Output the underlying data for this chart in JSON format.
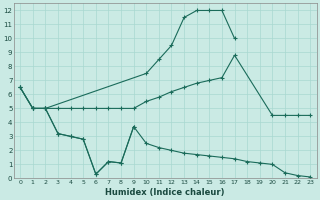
{
  "xlabel": "Humidex (Indice chaleur)",
  "background_color": "#caeae4",
  "grid_color": "#a8d8d0",
  "line_color": "#1a6b5a",
  "x_ticks": [
    0,
    1,
    2,
    3,
    4,
    5,
    6,
    7,
    8,
    9,
    10,
    11,
    12,
    13,
    14,
    15,
    16,
    17,
    18,
    19,
    20,
    21,
    22,
    23
  ],
  "y_ticks": [
    0,
    1,
    2,
    3,
    4,
    5,
    6,
    7,
    8,
    9,
    10,
    11,
    12
  ],
  "xlim": [
    -0.5,
    23.5
  ],
  "ylim": [
    0,
    12.5
  ],
  "lines": [
    {
      "x": [
        0,
        1,
        2,
        10,
        11,
        12,
        13,
        14,
        15,
        16,
        17
      ],
      "y": [
        6.5,
        5.0,
        5.0,
        7.5,
        8.5,
        9.5,
        11.5,
        12.0,
        12.0,
        12.0,
        10.0
      ]
    },
    {
      "x": [
        0,
        1,
        2,
        3,
        4,
        5,
        6,
        7,
        8,
        9,
        10,
        11,
        12,
        13,
        14,
        15,
        16,
        17,
        20,
        21,
        22,
        23
      ],
      "y": [
        6.5,
        5.0,
        5.0,
        5.0,
        5.0,
        5.0,
        5.0,
        5.0,
        5.0,
        5.0,
        5.5,
        5.8,
        6.2,
        6.5,
        6.8,
        7.0,
        7.2,
        8.8,
        4.5,
        4.5,
        4.5,
        4.5
      ]
    },
    {
      "x": [
        1,
        2,
        3,
        4,
        5,
        6,
        7,
        8,
        9
      ],
      "y": [
        5.0,
        5.0,
        3.2,
        3.0,
        2.8,
        0.3,
        1.2,
        1.1,
        3.7
      ]
    },
    {
      "x": [
        0,
        1,
        2,
        3,
        4,
        5,
        6,
        7,
        8,
        9,
        10,
        11,
        12,
        13,
        14,
        15,
        16,
        17,
        18,
        19,
        20,
        21,
        22,
        23
      ],
      "y": [
        6.5,
        5.0,
        5.0,
        3.2,
        3.0,
        2.8,
        0.3,
        1.2,
        1.1,
        3.7,
        2.5,
        2.2,
        2.0,
        1.8,
        1.7,
        1.6,
        1.5,
        1.4,
        1.2,
        1.1,
        1.0,
        0.4,
        0.2,
        0.1
      ]
    }
  ]
}
